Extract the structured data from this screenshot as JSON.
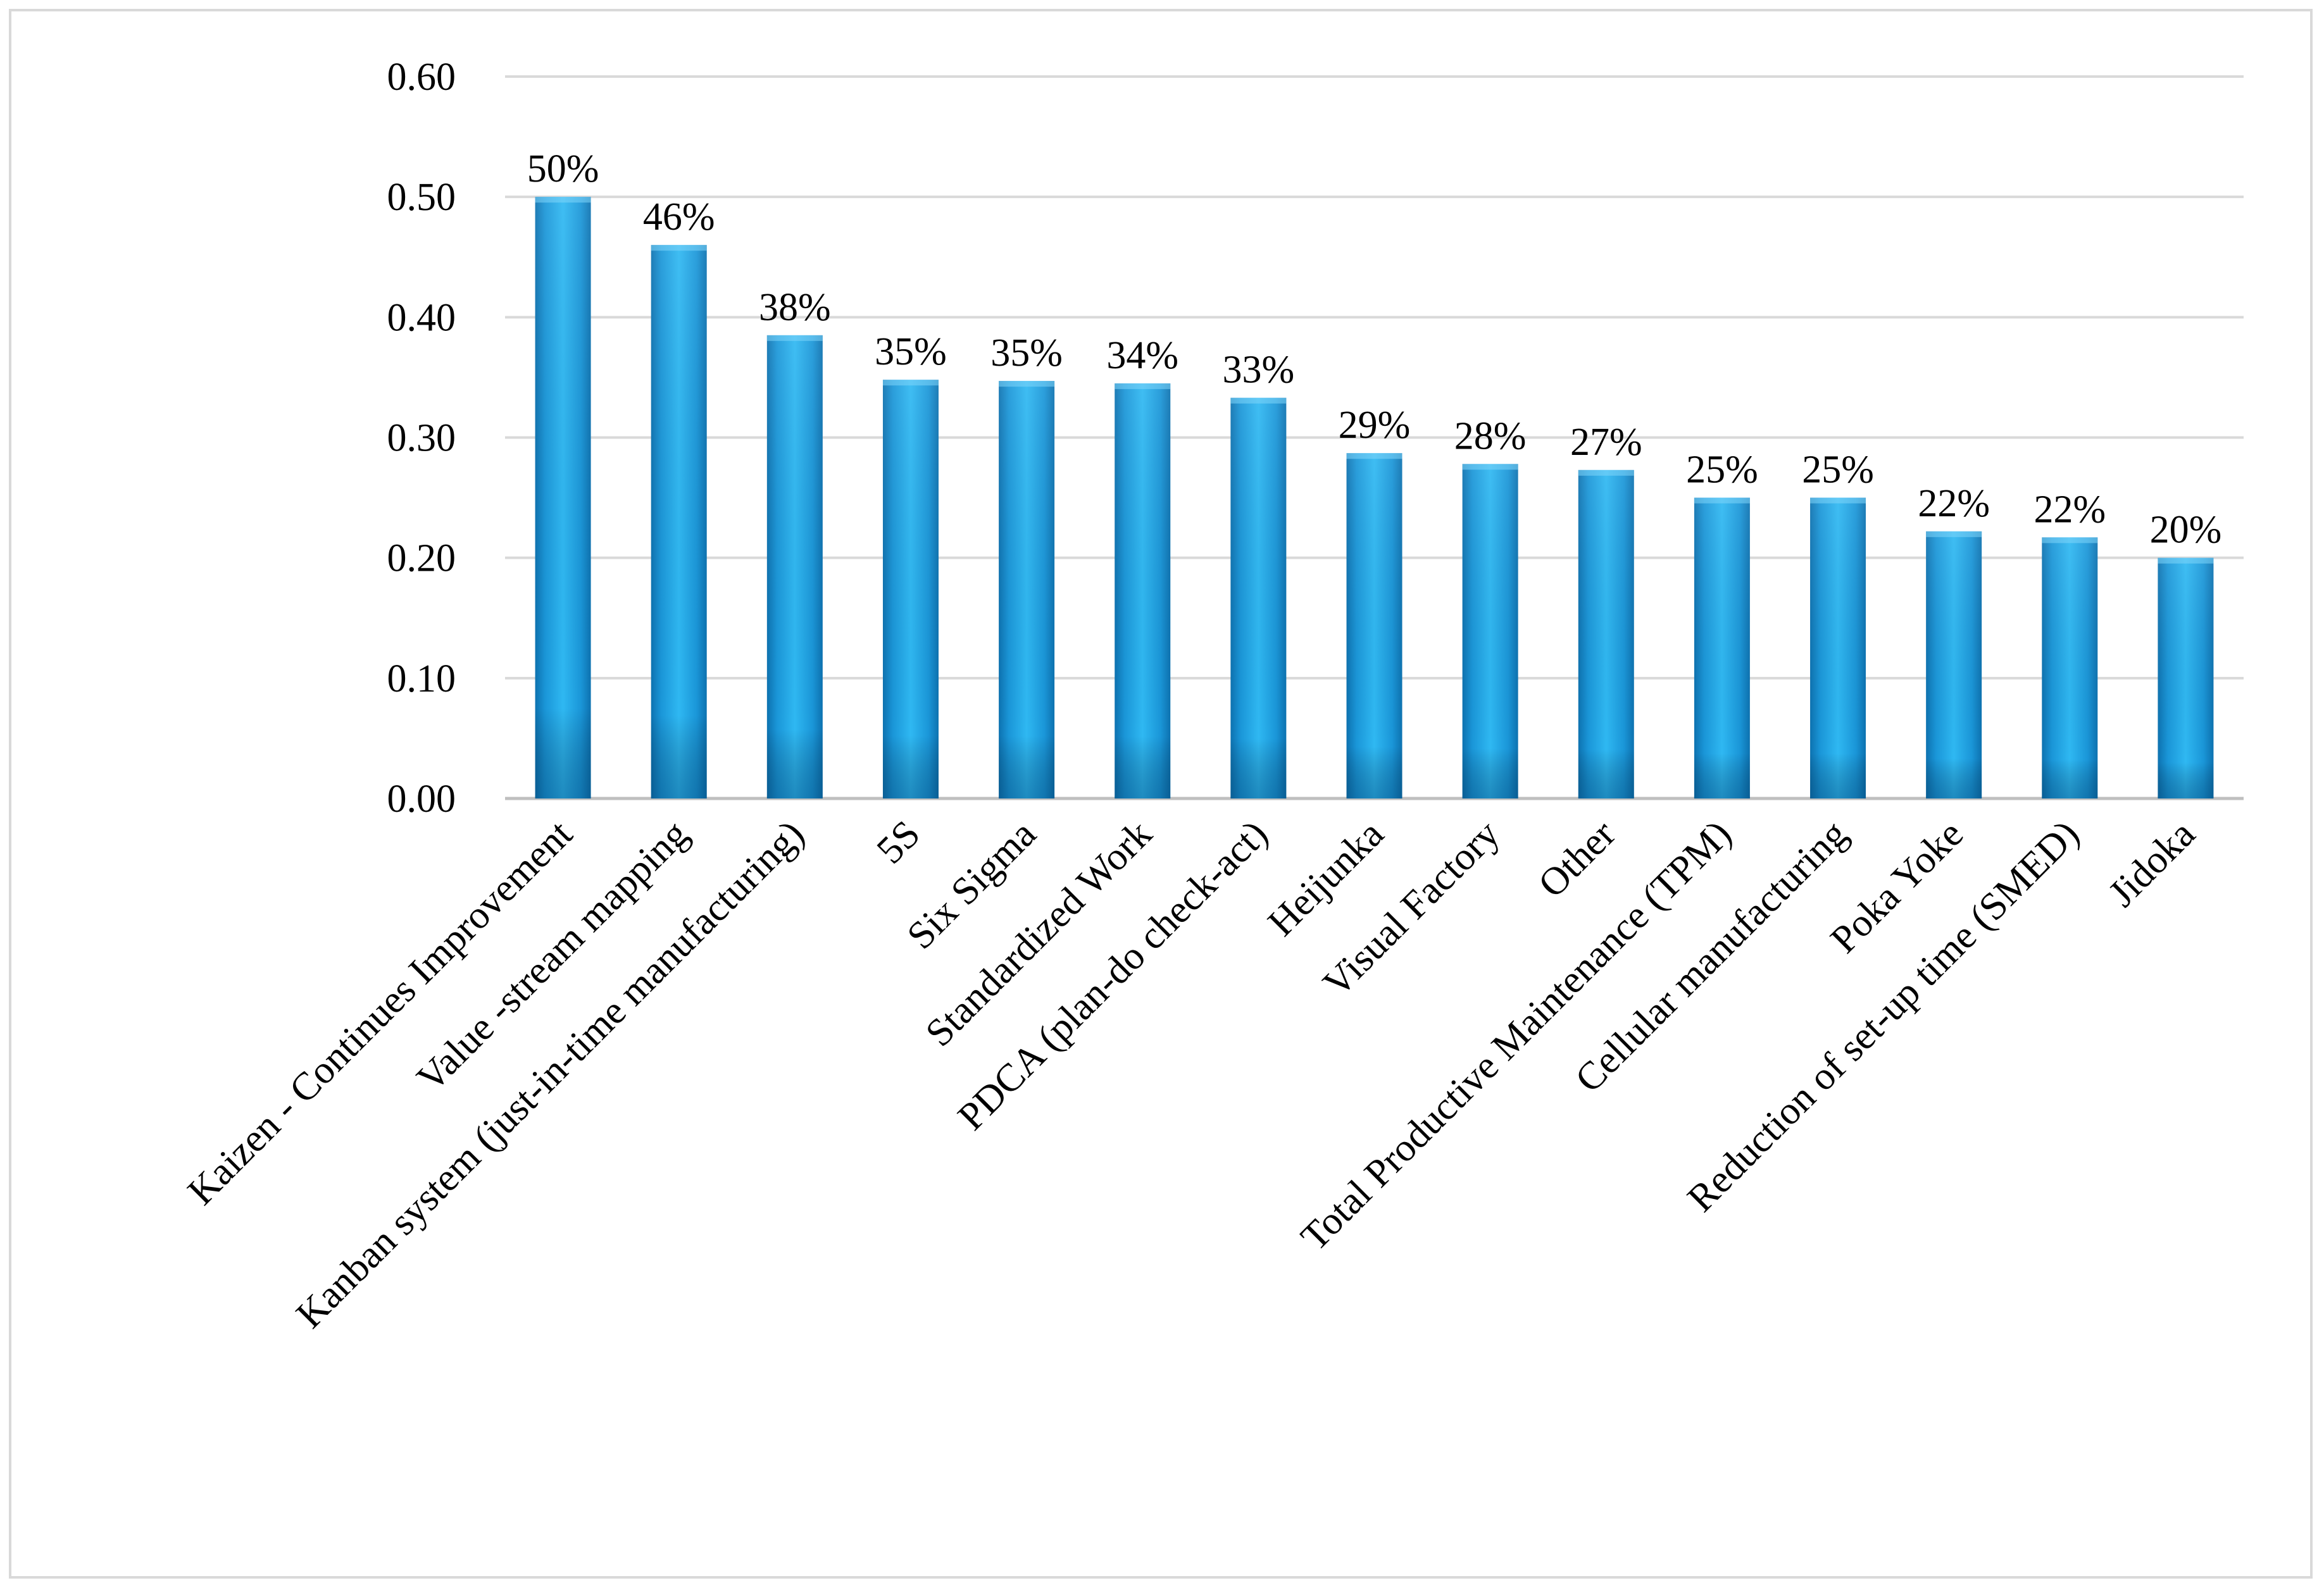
{
  "chart_data": {
    "type": "bar",
    "title": "",
    "xlabel": "",
    "ylabel": "",
    "ylim": [
      0,
      0.6
    ],
    "yticks": [
      0.0,
      0.1,
      0.2,
      0.3,
      0.4,
      0.5,
      0.6
    ],
    "ytick_labels": [
      "0.00",
      "0.10",
      "0.20",
      "0.30",
      "0.40",
      "0.50",
      "0.60"
    ],
    "grid": true,
    "legend": "none",
    "categories": [
      "Kaizen - Continues Improvement",
      "Value -stream mapping",
      "Kanban system (just-in-time manufacturing)",
      "5S",
      "Six Sigma",
      "Standardized Work",
      "PDCA (plan-do check-act)",
      "Heijunka",
      "Visual Factory",
      "Other",
      "Total Productive Maintenance (TPM)",
      "Cellular manufacturing",
      "Poka Yoke",
      "Reduction of set-up time (SMED)",
      "Jidoka"
    ],
    "values": [
      0.5,
      0.46,
      0.385,
      0.348,
      0.347,
      0.345,
      0.333,
      0.287,
      0.278,
      0.273,
      0.25,
      0.25,
      0.222,
      0.217,
      0.2
    ],
    "data_labels": [
      "50%",
      "46%",
      "38%",
      "35%",
      "35%",
      "34%",
      "33%",
      "29%",
      "28%",
      "27%",
      "25%",
      "25%",
      "22%",
      "22%",
      "20%"
    ],
    "bar_color": "#1a9fe0"
  }
}
